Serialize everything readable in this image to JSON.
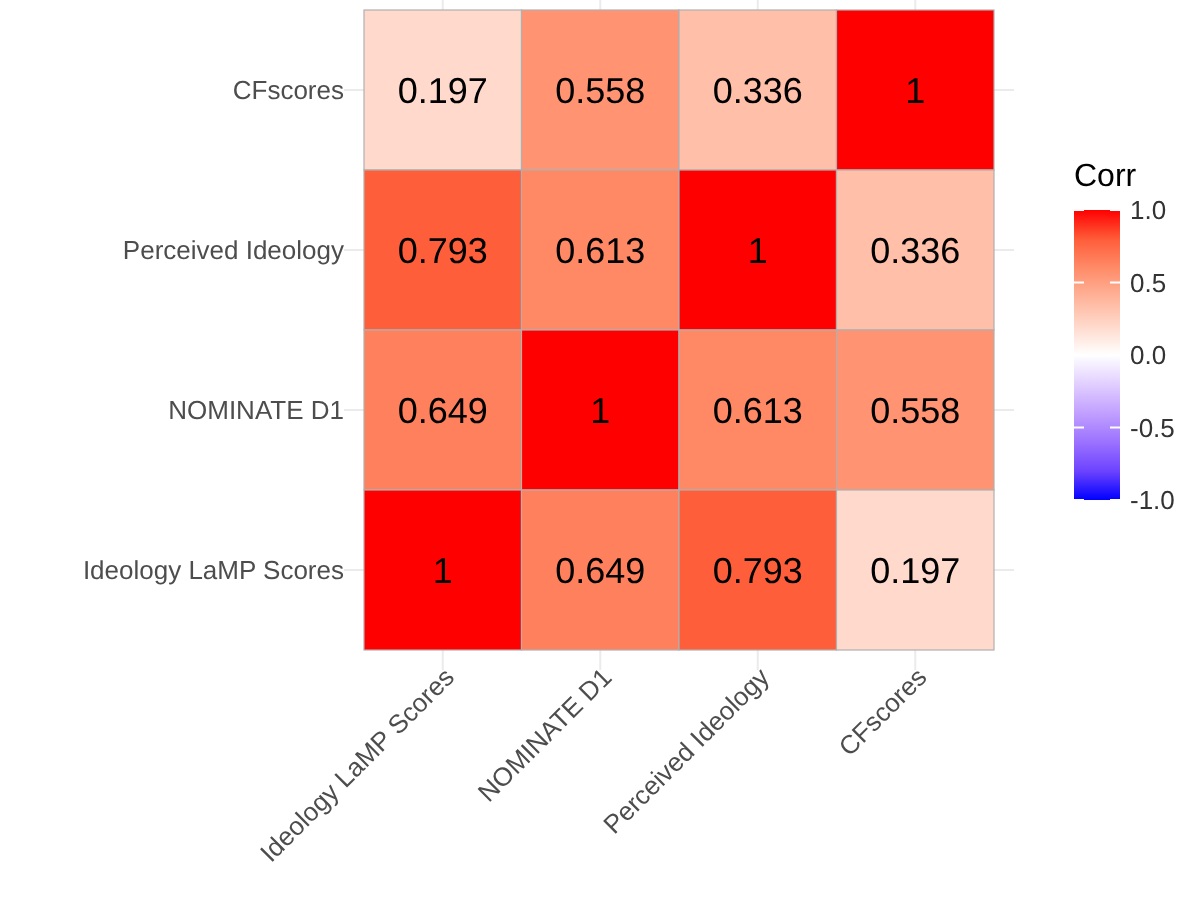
{
  "chart_data": {
    "type": "heatmap",
    "categories": [
      "Ideology LaMP Scores",
      "NOMINATE D1",
      "Perceived Ideology",
      "CFscores"
    ],
    "y_categories": [
      "CFscores",
      "Perceived Ideology",
      "NOMINATE D1",
      "Ideology LaMP Scores"
    ],
    "cells": [
      [
        0.197,
        0.558,
        0.336,
        1
      ],
      [
        0.793,
        0.613,
        1,
        0.336
      ],
      [
        0.649,
        1,
        0.613,
        0.558
      ],
      [
        1,
        0.649,
        0.793,
        0.197
      ]
    ],
    "clim": [
      -1,
      1
    ],
    "cticks": [
      {
        "value": -1,
        "label": "-1.0"
      },
      {
        "value": -0.5,
        "label": "-0.5"
      },
      {
        "value": 0,
        "label": "0.0"
      },
      {
        "value": 0.5,
        "label": "0.5"
      },
      {
        "value": 1,
        "label": "1.0"
      }
    ],
    "clabel": "Corr",
    "data_labels": true,
    "grid": true
  }
}
